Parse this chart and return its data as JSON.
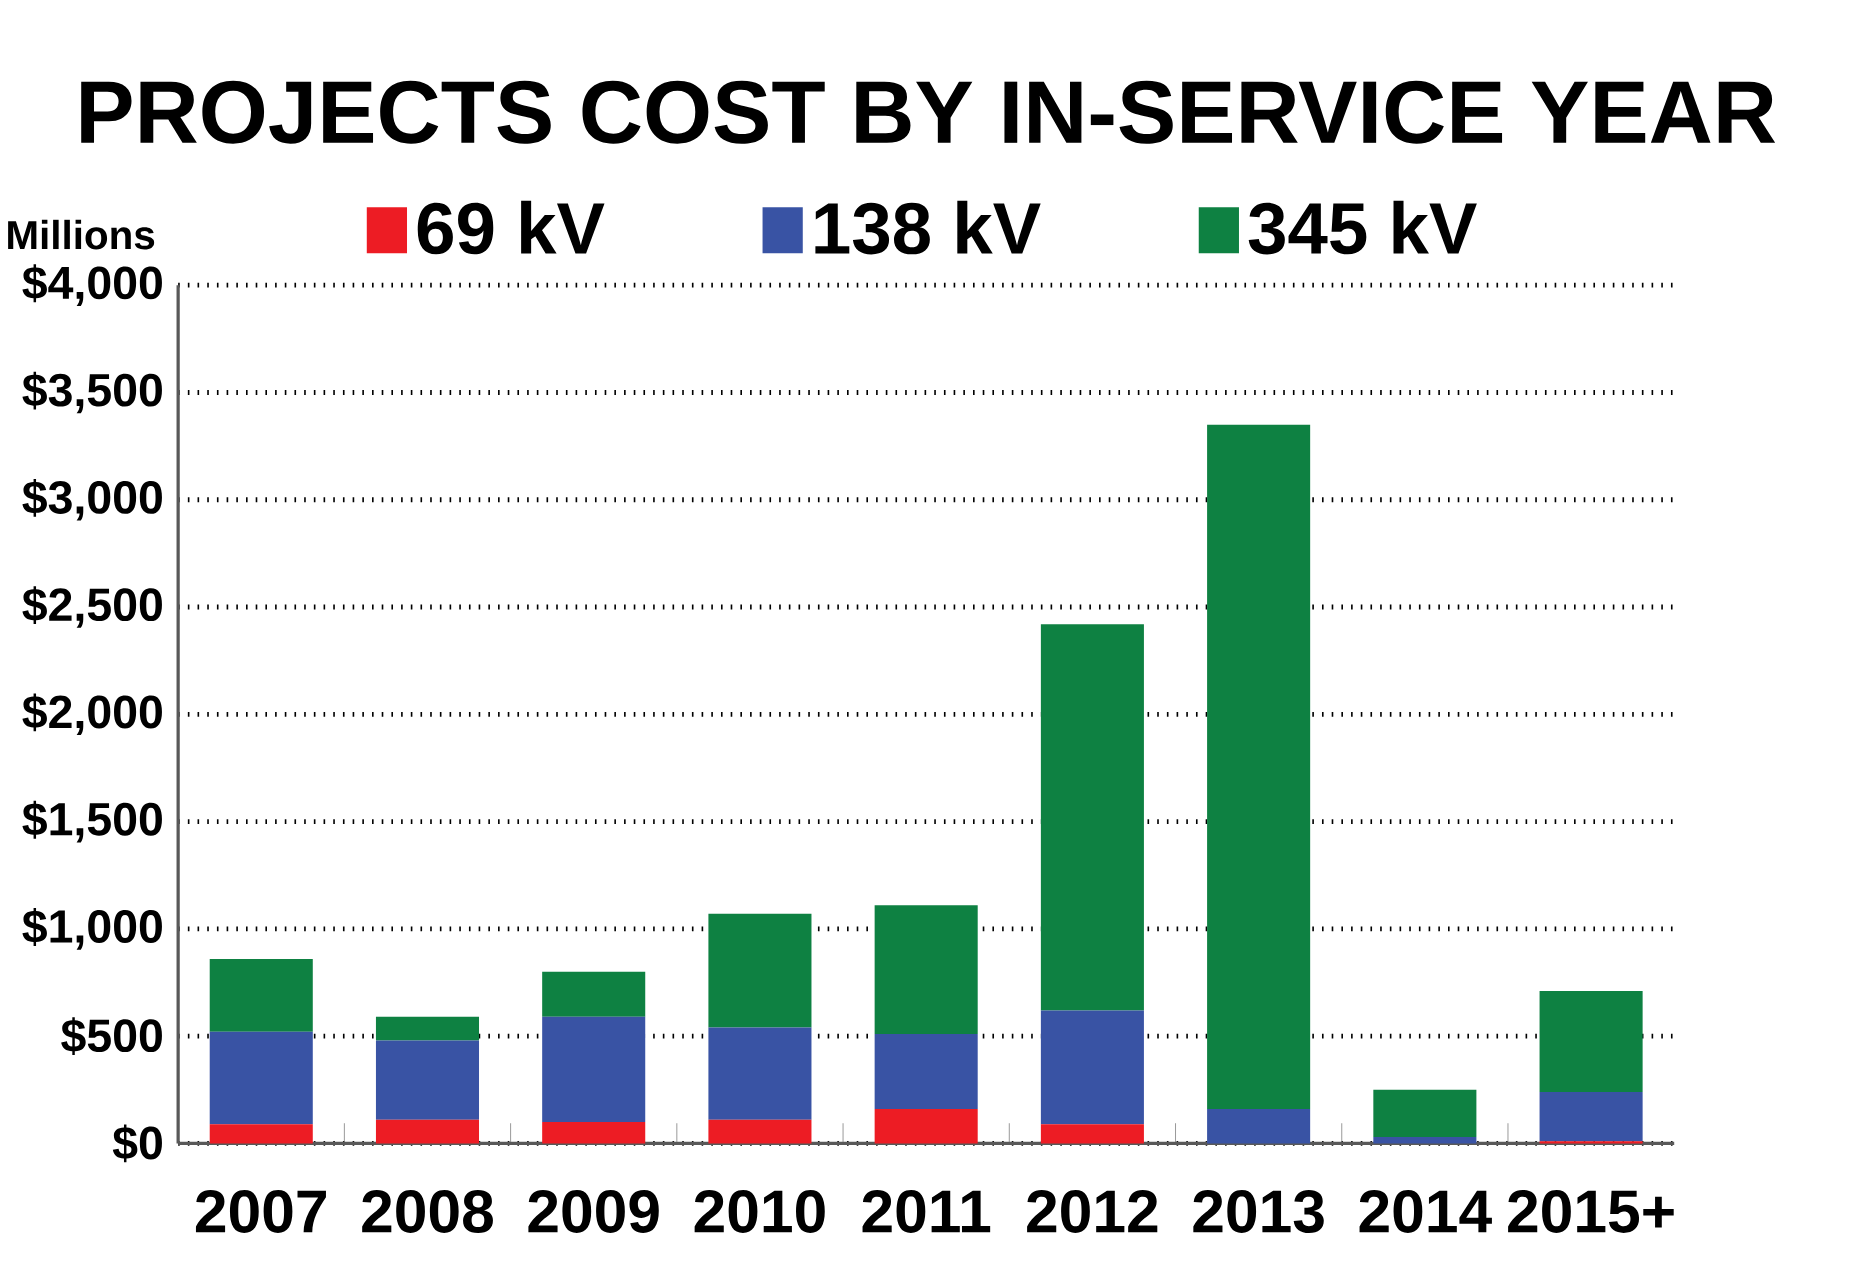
{
  "chart_data": {
    "type": "bar",
    "stacked": true,
    "title": "PROJECTS COST BY IN-SERVICE YEAR",
    "annotations": [
      "Millions"
    ],
    "categories": [
      "2007",
      "2008",
      "2009",
      "2010",
      "2011",
      "2012",
      "2013",
      "2014",
      "2015+"
    ],
    "series": [
      {
        "name": "69 kV",
        "color": "#ed1c24",
        "values": [
          90,
          110,
          100,
          110,
          160,
          90,
          0,
          0,
          10
        ]
      },
      {
        "name": "138 kV",
        "color": "#3953a4",
        "values": [
          430,
          370,
          490,
          430,
          350,
          530,
          160,
          30,
          230
        ]
      },
      {
        "name": "345 kV",
        "color": "#0e8142",
        "values": [
          340,
          110,
          210,
          530,
          600,
          1800,
          3190,
          220,
          470
        ]
      }
    ],
    "ylim": [
      0,
      4000
    ],
    "yticks": [
      {
        "value": 0,
        "label": "$0"
      },
      {
        "value": 500,
        "label": "$500"
      },
      {
        "value": 1000,
        "label": "$1,000"
      },
      {
        "value": 1500,
        "label": "$1,500"
      },
      {
        "value": 2000,
        "label": "$2,000"
      },
      {
        "value": 2500,
        "label": "$2,500"
      },
      {
        "value": 3000,
        "label": "$3,000"
      },
      {
        "value": 3500,
        "label": "$3,500"
      },
      {
        "value": 4000,
        "label": "$4,000"
      }
    ],
    "grid": "y",
    "legend": "top"
  }
}
